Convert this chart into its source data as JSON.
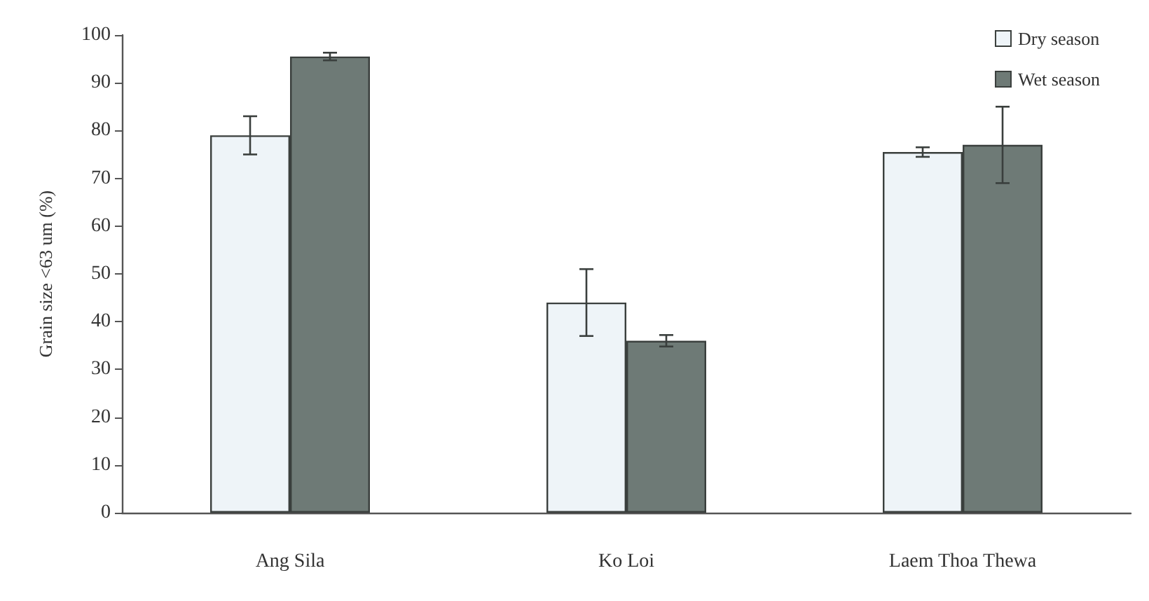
{
  "chart_data": {
    "type": "bar",
    "categories": [
      "Ang Sila",
      "Ko Loi",
      "Laem Thoa Thewa"
    ],
    "series": [
      {
        "name": "Dry season",
        "color": "#eef4f8",
        "values": [
          79,
          44,
          75.5
        ],
        "errors": [
          4,
          7,
          1
        ]
      },
      {
        "name": "Wet season",
        "color": "#6e7a76",
        "values": [
          95.5,
          36,
          77
        ],
        "errors": [
          0.8,
          1.2,
          8
        ]
      }
    ],
    "ylabel": "Grain size <63 um (%)",
    "ylim": [
      0,
      100
    ],
    "yticks": [
      0,
      10,
      20,
      30,
      40,
      50,
      60,
      70,
      80,
      90,
      100
    ],
    "legend": "top right"
  }
}
